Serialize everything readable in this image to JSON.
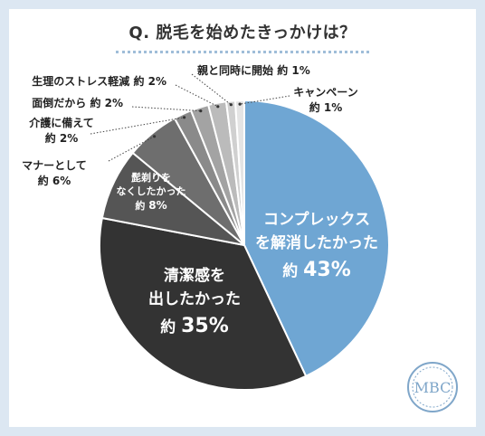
{
  "chart_data": {
    "type": "pie",
    "title": "Q. 脱毛を始めたきっかけは？",
    "slices": [
      {
        "label": "コンプレックスを解消したかった",
        "lines": [
          "コンプレックス",
          "を解消したかった"
        ],
        "prefix": "約",
        "pct_text": "43%",
        "value": 43,
        "color": "#6fa6d3"
      },
      {
        "label": "清潔感を出したかった",
        "lines": [
          "清潔感を",
          "出したかった"
        ],
        "prefix": "約",
        "pct_text": "35%",
        "value": 35,
        "color": "#333333"
      },
      {
        "label": "髭剃りをなくしたかった",
        "lines": [
          "髭剃りを",
          "なくしたかった"
        ],
        "prefix": "約",
        "pct_text": "8%",
        "value": 8,
        "color": "#555555"
      },
      {
        "label": "マナーとして",
        "lines": [
          "マナーとして"
        ],
        "prefix": "約",
        "pct_text": "6%",
        "value": 6,
        "color": "#6e6e6e"
      },
      {
        "label": "介護に備えて",
        "lines": [
          "介護に備えて"
        ],
        "prefix": "約",
        "pct_text": "2%",
        "value": 2,
        "color": "#8a8a8a"
      },
      {
        "label": "面倒だから",
        "lines": [
          "面倒だから"
        ],
        "prefix": "約",
        "pct_text": "2%",
        "value": 2,
        "color": "#a3a3a3"
      },
      {
        "label": "生理のストレス軽減",
        "lines": [
          "生理のストレス軽減"
        ],
        "prefix": "約",
        "pct_text": "2%",
        "value": 2,
        "color": "#bbbbbb"
      },
      {
        "label": "親と同時に開始",
        "lines": [
          "親と同時に開始"
        ],
        "prefix": "約",
        "pct_text": "1%",
        "value": 1,
        "color": "#d0d0d0"
      },
      {
        "label": "キャンペーン",
        "lines": [
          "キャンペーン"
        ],
        "prefix": "約",
        "pct_text": "1%",
        "value": 1,
        "color": "#e4e4e4"
      }
    ],
    "legend": "none"
  },
  "logo": {
    "text": "MBC",
    "color": "#7fa6c9"
  }
}
